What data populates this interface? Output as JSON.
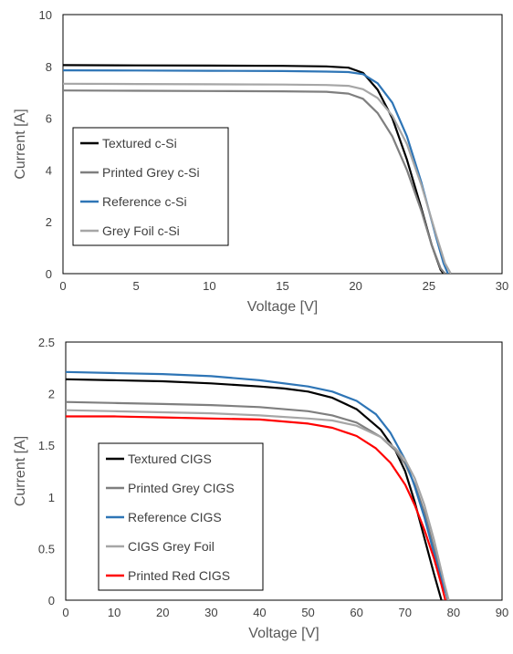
{
  "chart_data": [
    {
      "type": "line",
      "title": "",
      "xlabel": "Voltage [V]",
      "ylabel": "Current [A]",
      "xlim": [
        0,
        30
      ],
      "ylim": [
        0,
        10
      ],
      "xticks": [
        0,
        5,
        10,
        15,
        20,
        25,
        30
      ],
      "yticks": [
        0,
        2,
        4,
        6,
        8,
        10
      ],
      "grid": false,
      "legend_position": "bottom-left",
      "series": [
        {
          "name": "Textured c-Si",
          "color": "#000000",
          "x": [
            0,
            5,
            10,
            15,
            18,
            19.5,
            20.5,
            21.5,
            22.5,
            23.5,
            24.5,
            25.2,
            25.8,
            26.0
          ],
          "y": [
            8.05,
            8.04,
            8.03,
            8.02,
            8.0,
            7.95,
            7.75,
            7.1,
            6.0,
            4.4,
            2.5,
            1.1,
            0.15,
            0.0
          ]
        },
        {
          "name": "Printed Grey c-Si",
          "color": "#7f7f7f",
          "x": [
            0,
            5,
            10,
            15,
            18,
            19.5,
            20.5,
            21.5,
            22.5,
            23.5,
            24.5,
            25.2,
            25.8,
            26.1
          ],
          "y": [
            7.07,
            7.06,
            7.05,
            7.04,
            7.02,
            6.95,
            6.75,
            6.2,
            5.3,
            4.0,
            2.4,
            1.1,
            0.2,
            0.0
          ]
        },
        {
          "name": "Reference c-Si",
          "color": "#2e75b6",
          "x": [
            0,
            5,
            10,
            15,
            18,
            19.5,
            20.5,
            21.5,
            22.5,
            23.5,
            24.5,
            25.5,
            26.0,
            26.3
          ],
          "y": [
            7.85,
            7.84,
            7.83,
            7.82,
            7.8,
            7.78,
            7.7,
            7.35,
            6.6,
            5.3,
            3.5,
            1.4,
            0.4,
            0.0
          ]
        },
        {
          "name": "Grey Foil c-Si",
          "color": "#a6a6a6",
          "x": [
            0,
            5,
            10,
            15,
            18,
            19.5,
            20.5,
            21.5,
            22.5,
            23.5,
            24.5,
            25.5,
            26.1,
            26.5
          ],
          "y": [
            7.33,
            7.32,
            7.31,
            7.3,
            7.28,
            7.25,
            7.12,
            6.78,
            6.1,
            5.0,
            3.4,
            1.5,
            0.4,
            0.0
          ]
        }
      ]
    },
    {
      "type": "line",
      "title": "",
      "xlabel": "Voltage [V]",
      "ylabel": "Current [A]",
      "xlim": [
        0,
        90
      ],
      "ylim": [
        0,
        2.5
      ],
      "xticks": [
        0,
        10,
        20,
        30,
        40,
        50,
        60,
        70,
        80,
        90
      ],
      "yticks": [
        0,
        0.5,
        1,
        1.5,
        2,
        2.5
      ],
      "grid": false,
      "legend_position": "bottom-left",
      "series": [
        {
          "name": "Textured CIGS",
          "color": "#000000",
          "x": [
            0,
            10,
            20,
            30,
            40,
            45,
            50,
            55,
            60,
            65,
            68,
            70,
            72,
            74,
            76,
            77.5
          ],
          "y": [
            2.14,
            2.13,
            2.12,
            2.1,
            2.07,
            2.05,
            2.02,
            1.96,
            1.85,
            1.65,
            1.45,
            1.25,
            0.95,
            0.6,
            0.25,
            0.0
          ]
        },
        {
          "name": "Printed Grey CIGS",
          "color": "#7f7f7f",
          "x": [
            0,
            10,
            20,
            30,
            40,
            50,
            55,
            60,
            65,
            68,
            70,
            72,
            74,
            76,
            78,
            78.8
          ],
          "y": [
            1.92,
            1.91,
            1.9,
            1.89,
            1.87,
            1.83,
            1.79,
            1.72,
            1.58,
            1.45,
            1.32,
            1.12,
            0.85,
            0.5,
            0.15,
            0.0
          ]
        },
        {
          "name": "Reference CIGS",
          "color": "#2e75b6",
          "x": [
            0,
            10,
            20,
            30,
            40,
            50,
            55,
            60,
            64,
            67,
            70,
            72,
            74,
            76,
            78,
            79
          ],
          "y": [
            2.21,
            2.2,
            2.19,
            2.17,
            2.13,
            2.07,
            2.02,
            1.93,
            1.8,
            1.62,
            1.36,
            1.1,
            0.8,
            0.45,
            0.12,
            0.0
          ]
        },
        {
          "name": "CIGS Grey Foil",
          "color": "#a6a6a6",
          "x": [
            0,
            10,
            20,
            30,
            40,
            50,
            55,
            60,
            65,
            68,
            70,
            72,
            74,
            76,
            78,
            79
          ],
          "y": [
            1.84,
            1.83,
            1.82,
            1.81,
            1.79,
            1.76,
            1.74,
            1.69,
            1.58,
            1.47,
            1.36,
            1.18,
            0.92,
            0.58,
            0.18,
            0.0
          ]
        },
        {
          "name": "Printed Red CIGS",
          "color": "#ff0000",
          "x": [
            0,
            10,
            20,
            30,
            40,
            50,
            55,
            60,
            64,
            67,
            70,
            72,
            74,
            76,
            77.5,
            78.3
          ],
          "y": [
            1.78,
            1.78,
            1.77,
            1.76,
            1.75,
            1.71,
            1.67,
            1.59,
            1.47,
            1.33,
            1.12,
            0.92,
            0.68,
            0.4,
            0.15,
            0.0
          ]
        }
      ]
    }
  ]
}
